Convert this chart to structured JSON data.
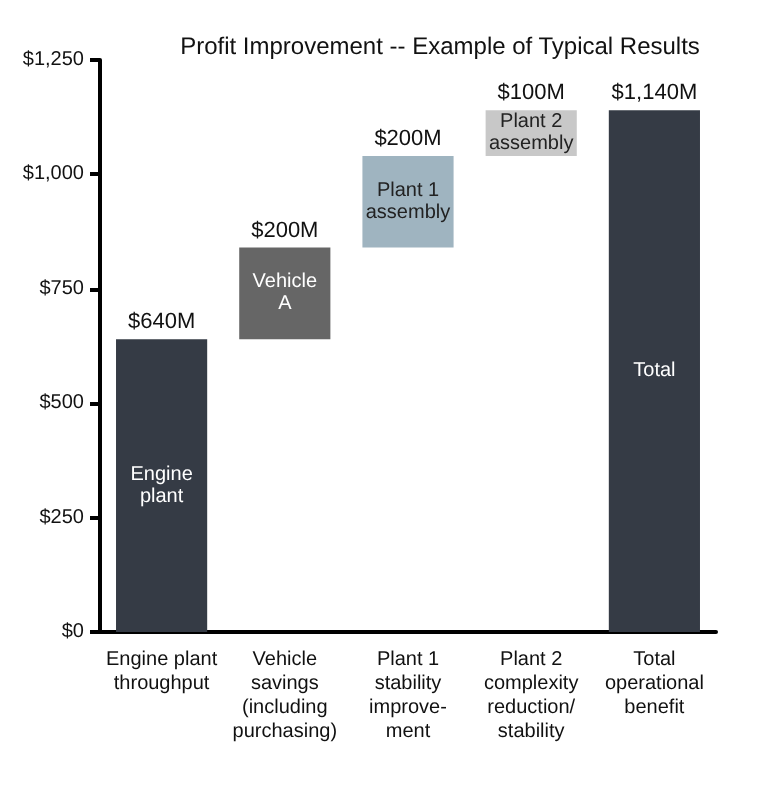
{
  "chart_data": {
    "type": "bar",
    "title": "Profit Improvement -- Example of Typical Results",
    "categories": [
      "Engine plant\nthroughput",
      "Vehicle\nsavings\n(including\npurchasing)",
      "Plant 1\nstability\nimprove-\nment",
      "Plant 2\ncomplexity\nreduction/\nstability",
      "Total\noperational\nbenefit"
    ],
    "values": [
      640,
      200,
      200,
      100,
      1140
    ],
    "base": [
      0,
      640,
      840,
      1040,
      0
    ],
    "colors": [
      "#353b45",
      "#666666",
      "#9fb4c0",
      "#c8c8c8",
      "#353b45"
    ],
    "value_labels": [
      "$640M",
      "$200M",
      "$200M",
      "$100M",
      "$1,140M"
    ],
    "annotations": [
      "Engine\nplant",
      "Vehicle\nA",
      "Plant 1\nassembly",
      "Plant 2\nassembly",
      "Total"
    ],
    "ylim": [
      0,
      1250
    ],
    "yticks": [
      {
        "value": 0,
        "label": "$0"
      },
      {
        "value": 250,
        "label": "$250"
      },
      {
        "value": 500,
        "label": "$500"
      },
      {
        "value": 750,
        "label": "$750"
      },
      {
        "value": 1000,
        "label": "$1,000"
      },
      {
        "value": 1250,
        "label": "$1,250"
      }
    ],
    "grid": false
  }
}
